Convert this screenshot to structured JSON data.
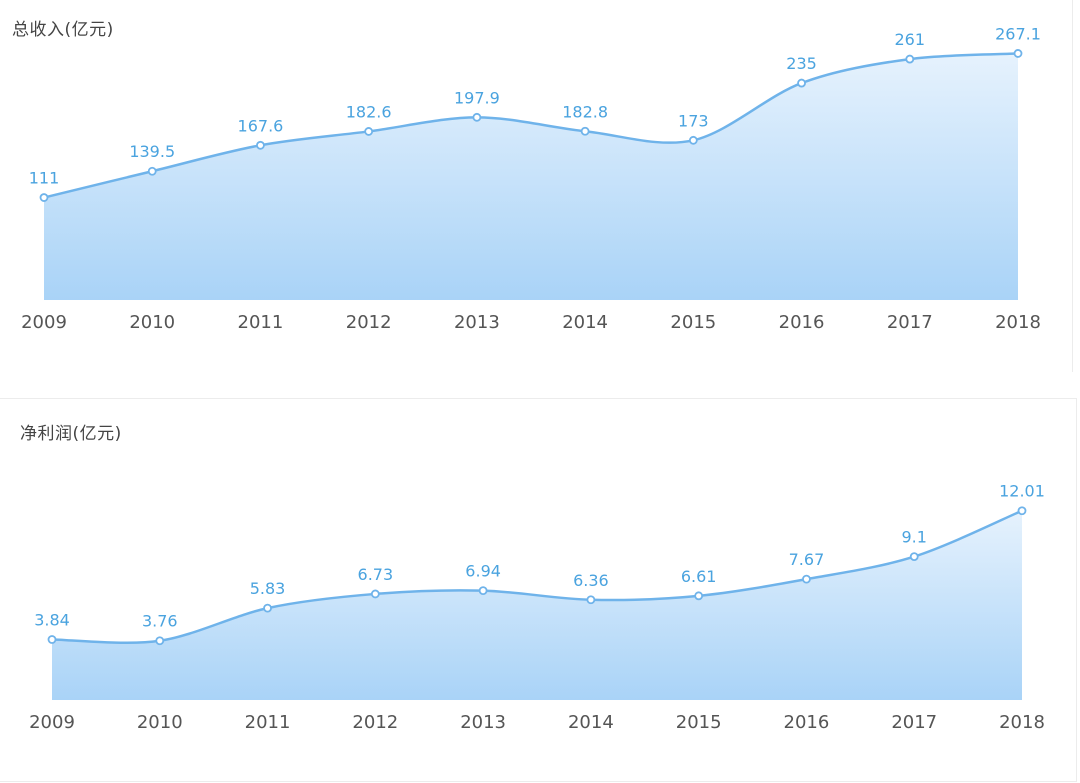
{
  "chart_data": [
    {
      "type": "area",
      "title": "总收入(亿元)",
      "categories": [
        "2009",
        "2010",
        "2011",
        "2012",
        "2013",
        "2014",
        "2015",
        "2016",
        "2017",
        "2018"
      ],
      "values": [
        111,
        139.5,
        167.6,
        182.6,
        197.9,
        182.8,
        173,
        235,
        261,
        267.1
      ],
      "value_labels": [
        "111",
        "139.5",
        "167.6",
        "182.6",
        "197.9",
        "182.8",
        "173",
        "235",
        "261",
        "267.1"
      ],
      "xlabel": "",
      "ylabel": "",
      "ylim": [
        0,
        325
      ],
      "grid": false,
      "legend": "none",
      "colors": {
        "line": "#6fb3ea",
        "fill_top": "#e6f2fd",
        "fill_bottom": "#a9d3f7",
        "label": "#4aa3df"
      }
    },
    {
      "type": "area",
      "title": "净利润(亿元)",
      "categories": [
        "2009",
        "2010",
        "2011",
        "2012",
        "2013",
        "2014",
        "2015",
        "2016",
        "2017",
        "2018"
      ],
      "values": [
        3.84,
        3.76,
        5.83,
        6.73,
        6.94,
        6.36,
        6.61,
        7.67,
        9.1,
        12.01
      ],
      "value_labels": [
        "3.84",
        "3.76",
        "5.83",
        "6.73",
        "6.94",
        "6.36",
        "6.61",
        "7.67",
        "9.1",
        "12.01"
      ],
      "xlabel": "",
      "ylabel": "",
      "ylim": [
        0,
        19.1
      ],
      "grid": false,
      "legend": "none",
      "colors": {
        "line": "#6fb3ea",
        "fill_top": "#e6f2fd",
        "fill_bottom": "#a9d3f7",
        "label": "#4aa3df"
      }
    }
  ]
}
